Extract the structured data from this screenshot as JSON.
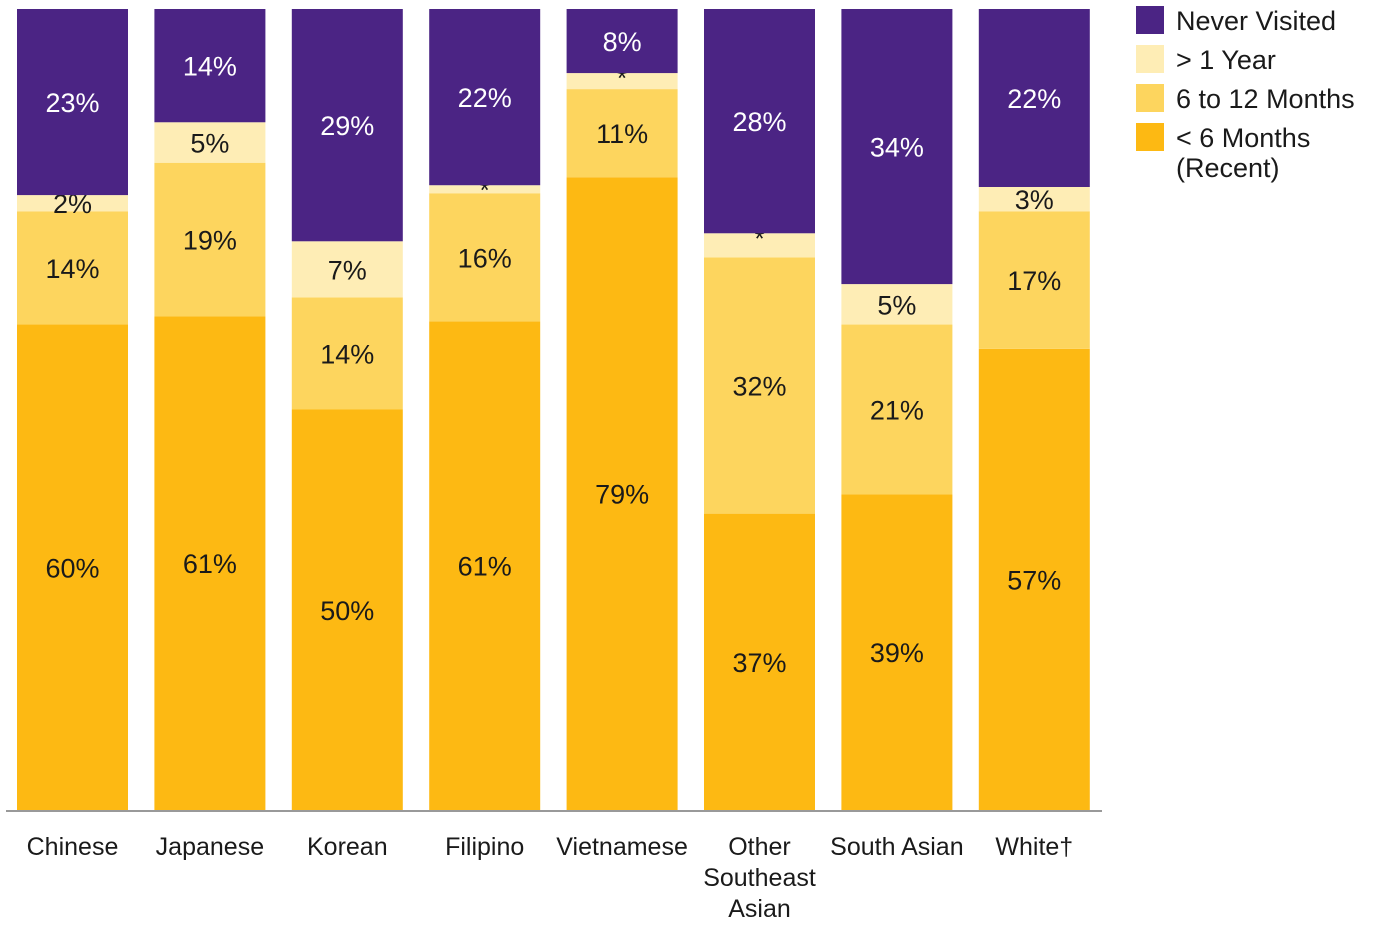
{
  "chart_data": {
    "type": "bar",
    "stacked": true,
    "orientation": "vertical",
    "categories": [
      "Chinese",
      "Japanese",
      "Korean",
      "Filipino",
      "Vietnamese",
      "Other Southeast Asian",
      "South Asian",
      "White†"
    ],
    "category_labels": [
      "Chinese",
      "Japanese",
      "Korean",
      "Filipino",
      "Vietnamese",
      "Other\nSoutheast\nAsian",
      "South Asian",
      "White†"
    ],
    "ylim": [
      0,
      100
    ],
    "grid": false,
    "legend_position": "top-right",
    "series": [
      {
        "name": "< 6 Months\n(Recent)",
        "color": "#FDB913",
        "values": [
          60,
          61,
          50,
          61,
          79,
          37,
          39,
          57
        ],
        "labels": [
          "60%",
          "61%",
          "50%",
          "61%",
          "79%",
          "37%",
          "39%",
          "57%"
        ]
      },
      {
        "name": "6 to 12 Months",
        "color": "#FDD55E",
        "values": [
          14,
          19,
          14,
          16,
          11,
          32,
          21,
          17
        ],
        "labels": [
          "14%",
          "19%",
          "14%",
          "16%",
          "11%",
          "32%",
          "21%",
          "17%"
        ]
      },
      {
        "name": "> 1 Year",
        "color": "#FEEDB5",
        "values": [
          2,
          5,
          7,
          1,
          2,
          3,
          5,
          3
        ],
        "labels": [
          "2%",
          "5%",
          "7%",
          "*",
          "*",
          "*",
          "5%",
          "3%"
        ]
      },
      {
        "name": "Never Visited",
        "color": "#4B2484",
        "values": [
          23,
          14,
          29,
          22,
          8,
          28,
          34,
          22
        ],
        "labels": [
          "23%",
          "14%",
          "29%",
          "22%",
          "8%",
          "28%",
          "34%",
          "22%"
        ]
      }
    ],
    "legend_order": [
      3,
      2,
      1,
      0
    ]
  },
  "colors": {
    "axis": "#999999",
    "text_dark": "#1a1a1a",
    "text_light": "#ffffff"
  }
}
